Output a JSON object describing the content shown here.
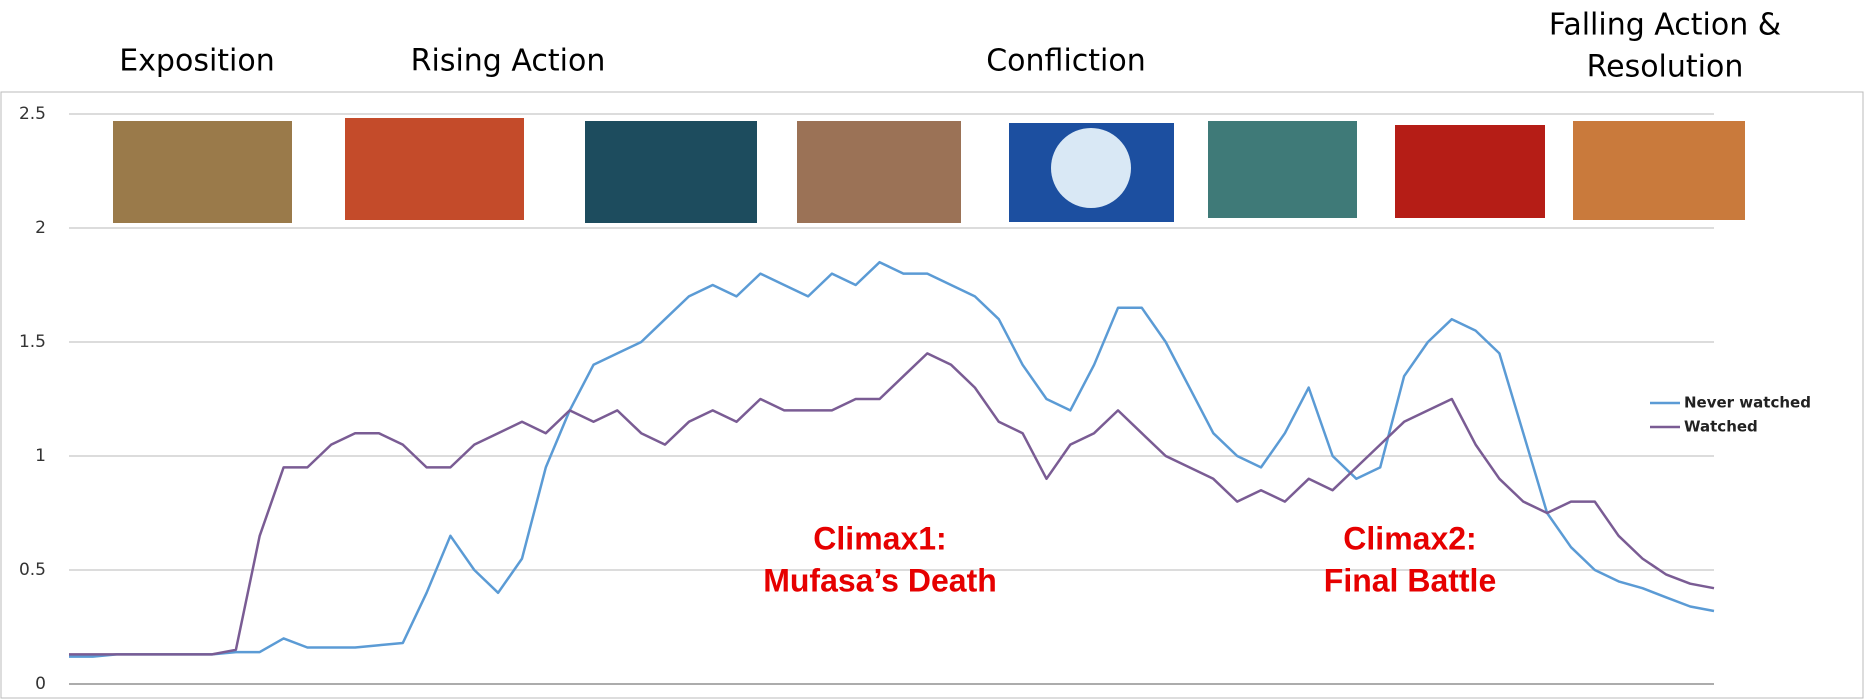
{
  "chart_data": {
    "type": "line",
    "stage_labels": [
      "Exposition",
      "Rising Action",
      "Confliction",
      "Falling Action &",
      "Resolution"
    ],
    "annotations": [
      "Climax1:",
      "Mufasa’s Death",
      "Climax2:",
      "Final Battle"
    ],
    "ylim": [
      0,
      2.5
    ],
    "yticks": [
      0,
      0.5,
      1,
      1.5,
      2,
      2.5
    ],
    "grid": true,
    "legend": "right",
    "series": [
      {
        "name": "Never watched",
        "color": "#5b9bd5",
        "values": [
          0.12,
          0.12,
          0.13,
          0.13,
          0.13,
          0.13,
          0.13,
          0.14,
          0.14,
          0.2,
          0.16,
          0.16,
          0.16,
          0.17,
          0.18,
          0.4,
          0.65,
          0.5,
          0.4,
          0.55,
          0.95,
          1.2,
          1.4,
          1.45,
          1.5,
          1.6,
          1.7,
          1.75,
          1.7,
          1.8,
          1.75,
          1.7,
          1.8,
          1.75,
          1.85,
          1.8,
          1.8,
          1.75,
          1.7,
          1.6,
          1.4,
          1.25,
          1.2,
          1.4,
          1.65,
          1.65,
          1.5,
          1.3,
          1.1,
          1.0,
          0.95,
          1.1,
          1.3,
          1.0,
          0.9,
          0.95,
          1.35,
          1.5,
          1.6,
          1.55,
          1.45,
          1.1,
          0.75,
          0.6,
          0.5,
          0.45,
          0.42,
          0.38,
          0.34,
          0.32
        ]
      },
      {
        "name": "Watched",
        "color": "#7a5c94",
        "values": [
          0.13,
          0.13,
          0.13,
          0.13,
          0.13,
          0.13,
          0.13,
          0.15,
          0.65,
          0.95,
          0.95,
          1.05,
          1.1,
          1.1,
          1.05,
          0.95,
          0.95,
          1.05,
          1.1,
          1.15,
          1.1,
          1.2,
          1.15,
          1.2,
          1.1,
          1.05,
          1.15,
          1.2,
          1.15,
          1.25,
          1.2,
          1.2,
          1.2,
          1.25,
          1.25,
          1.35,
          1.45,
          1.4,
          1.3,
          1.15,
          1.1,
          0.9,
          1.05,
          1.1,
          1.2,
          1.1,
          1.0,
          0.95,
          0.9,
          0.8,
          0.85,
          0.8,
          0.9,
          0.85,
          0.95,
          1.05,
          1.15,
          1.2,
          1.25,
          1.05,
          0.9,
          0.8,
          0.75,
          0.8,
          0.8,
          0.65,
          0.55,
          0.48,
          0.44,
          0.42
        ]
      }
    ]
  }
}
